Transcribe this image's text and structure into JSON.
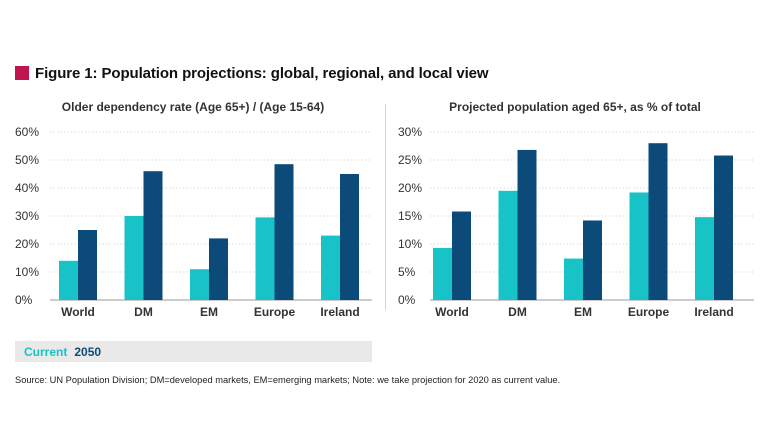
{
  "figure": {
    "title": "Figure 1: Population projections: global, regional, and local view",
    "marker_color": "#c0154f"
  },
  "legend": {
    "items": [
      {
        "label": "Current",
        "color": "#17c3c7"
      },
      {
        "label": "2050",
        "color": "#0c4a7a"
      }
    ]
  },
  "source": "Source: UN Population Division; DM=developed markets, EM=emerging markets; Note: we take projection for 2020 as current value.",
  "chart_data": [
    {
      "type": "bar",
      "title": "Older dependency rate (Age 65+) / (Age 15-64)",
      "categories": [
        "World",
        "DM",
        "EM",
        "Europe",
        "Ireland"
      ],
      "series": [
        {
          "name": "Current",
          "color": "#17c3c7",
          "values": [
            14,
            30,
            11,
            29.5,
            23
          ]
        },
        {
          "name": "2050",
          "color": "#0c4a7a",
          "values": [
            25,
            46,
            22,
            48.5,
            45
          ]
        }
      ],
      "ylim": [
        0,
        60
      ],
      "yticks": [
        0,
        10,
        20,
        30,
        40,
        50,
        60
      ],
      "ytick_labels": [
        "0%",
        "10%",
        "20%",
        "30%",
        "40%",
        "50%",
        "60%"
      ],
      "grid": true
    },
    {
      "type": "bar",
      "title": "Projected population aged 65+, as % of total",
      "categories": [
        "World",
        "DM",
        "EM",
        "Europe",
        "Ireland"
      ],
      "series": [
        {
          "name": "Current",
          "color": "#17c3c7",
          "values": [
            9.3,
            19.5,
            7.4,
            19.2,
            14.8
          ]
        },
        {
          "name": "2050",
          "color": "#0c4a7a",
          "values": [
            15.8,
            26.8,
            14.2,
            28,
            25.8
          ]
        }
      ],
      "ylim": [
        0,
        30
      ],
      "yticks": [
        0,
        5,
        10,
        15,
        20,
        25,
        30
      ],
      "ytick_labels": [
        "0%",
        "5%",
        "10%",
        "15%",
        "20%",
        "25%",
        "30%"
      ],
      "grid": true
    }
  ]
}
